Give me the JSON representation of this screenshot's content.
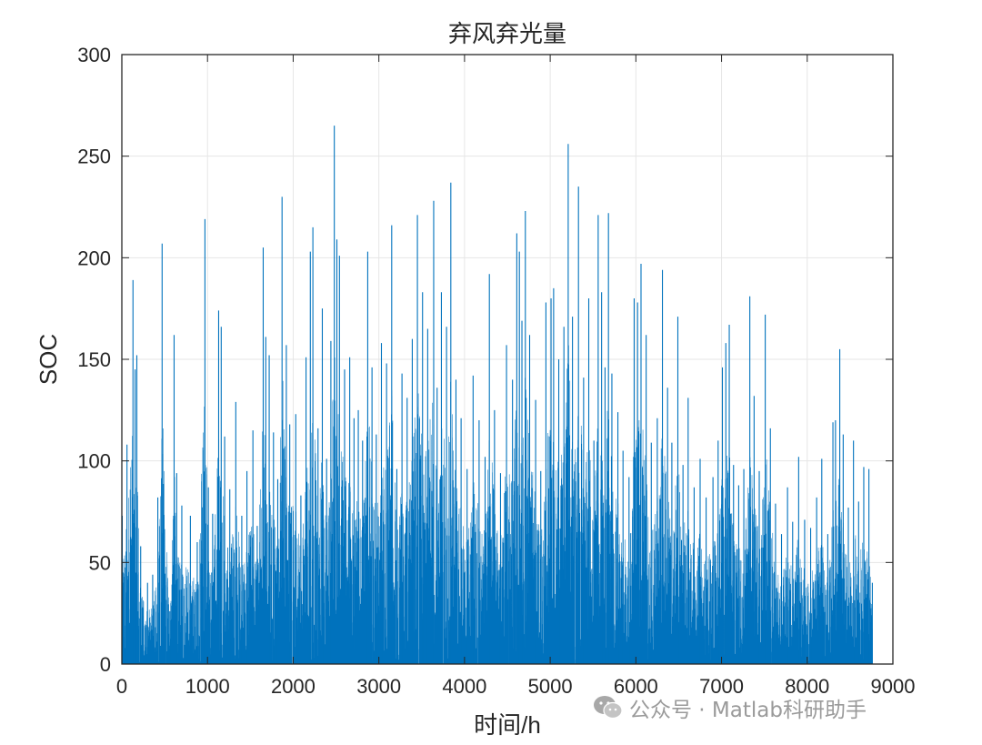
{
  "chart_data": {
    "type": "bar",
    "title": "弃风弃光量",
    "xlabel": "时间/h",
    "ylabel": "SOC",
    "xlim": [
      0,
      9000
    ],
    "ylim": [
      0,
      300
    ],
    "xticks": [
      0,
      1000,
      2000,
      3000,
      4000,
      5000,
      6000,
      7000,
      8000,
      9000
    ],
    "yticks": [
      0,
      50,
      100,
      150,
      200,
      250,
      300
    ],
    "grid": true,
    "color": "#0072BD",
    "hours_count": 8760,
    "peaks": [
      {
        "x": 5,
        "y": 73
      },
      {
        "x": 60,
        "y": 108
      },
      {
        "x": 130,
        "y": 189
      },
      {
        "x": 155,
        "y": 145
      },
      {
        "x": 175,
        "y": 152
      },
      {
        "x": 220,
        "y": 58
      },
      {
        "x": 300,
        "y": 40
      },
      {
        "x": 360,
        "y": 44
      },
      {
        "x": 420,
        "y": 82
      },
      {
        "x": 470,
        "y": 207
      },
      {
        "x": 560,
        "y": 26
      },
      {
        "x": 610,
        "y": 162
      },
      {
        "x": 640,
        "y": 94
      },
      {
        "x": 700,
        "y": 78
      },
      {
        "x": 800,
        "y": 73
      },
      {
        "x": 880,
        "y": 60
      },
      {
        "x": 970,
        "y": 219
      },
      {
        "x": 1010,
        "y": 87
      },
      {
        "x": 1060,
        "y": 74
      },
      {
        "x": 1130,
        "y": 174
      },
      {
        "x": 1160,
        "y": 166
      },
      {
        "x": 1200,
        "y": 112
      },
      {
        "x": 1260,
        "y": 86
      },
      {
        "x": 1330,
        "y": 129
      },
      {
        "x": 1400,
        "y": 73
      },
      {
        "x": 1460,
        "y": 95
      },
      {
        "x": 1530,
        "y": 115
      },
      {
        "x": 1580,
        "y": 68
      },
      {
        "x": 1650,
        "y": 205
      },
      {
        "x": 1680,
        "y": 161
      },
      {
        "x": 1720,
        "y": 152
      },
      {
        "x": 1770,
        "y": 114
      },
      {
        "x": 1820,
        "y": 91
      },
      {
        "x": 1870,
        "y": 230
      },
      {
        "x": 1920,
        "y": 157
      },
      {
        "x": 1960,
        "y": 118
      },
      {
        "x": 2030,
        "y": 123
      },
      {
        "x": 2090,
        "y": 83
      },
      {
        "x": 2150,
        "y": 151
      },
      {
        "x": 2200,
        "y": 203
      },
      {
        "x": 2230,
        "y": 215
      },
      {
        "x": 2290,
        "y": 116
      },
      {
        "x": 2340,
        "y": 175
      },
      {
        "x": 2390,
        "y": 101
      },
      {
        "x": 2440,
        "y": 159
      },
      {
        "x": 2480,
        "y": 265
      },
      {
        "x": 2510,
        "y": 209
      },
      {
        "x": 2540,
        "y": 201
      },
      {
        "x": 2600,
        "y": 145
      },
      {
        "x": 2660,
        "y": 151
      },
      {
        "x": 2710,
        "y": 121
      },
      {
        "x": 2760,
        "y": 125
      },
      {
        "x": 2810,
        "y": 110
      },
      {
        "x": 2870,
        "y": 203
      },
      {
        "x": 2920,
        "y": 146
      },
      {
        "x": 2970,
        "y": 113
      },
      {
        "x": 3030,
        "y": 158
      },
      {
        "x": 3090,
        "y": 148
      },
      {
        "x": 3150,
        "y": 216
      },
      {
        "x": 3210,
        "y": 96
      },
      {
        "x": 3270,
        "y": 143
      },
      {
        "x": 3330,
        "y": 131
      },
      {
        "x": 3390,
        "y": 160
      },
      {
        "x": 3450,
        "y": 221
      },
      {
        "x": 3510,
        "y": 183
      },
      {
        "x": 3570,
        "y": 165
      },
      {
        "x": 3640,
        "y": 228
      },
      {
        "x": 3680,
        "y": 136
      },
      {
        "x": 3730,
        "y": 183
      },
      {
        "x": 3790,
        "y": 166
      },
      {
        "x": 3840,
        "y": 237
      },
      {
        "x": 3900,
        "y": 140
      },
      {
        "x": 3960,
        "y": 121
      },
      {
        "x": 4030,
        "y": 96
      },
      {
        "x": 4100,
        "y": 142
      },
      {
        "x": 4170,
        "y": 120
      },
      {
        "x": 4240,
        "y": 102
      },
      {
        "x": 4290,
        "y": 192
      },
      {
        "x": 4350,
        "y": 125
      },
      {
        "x": 4420,
        "y": 94
      },
      {
        "x": 4490,
        "y": 157
      },
      {
        "x": 4560,
        "y": 140
      },
      {
        "x": 4610,
        "y": 212
      },
      {
        "x": 4640,
        "y": 203
      },
      {
        "x": 4670,
        "y": 169
      },
      {
        "x": 4710,
        "y": 223
      },
      {
        "x": 4760,
        "y": 162
      },
      {
        "x": 4830,
        "y": 130
      },
      {
        "x": 4890,
        "y": 95
      },
      {
        "x": 4950,
        "y": 178
      },
      {
        "x": 5010,
        "y": 180
      },
      {
        "x": 5040,
        "y": 185
      },
      {
        "x": 5100,
        "y": 150
      },
      {
        "x": 5160,
        "y": 166
      },
      {
        "x": 5210,
        "y": 256
      },
      {
        "x": 5260,
        "y": 171
      },
      {
        "x": 5330,
        "y": 235
      },
      {
        "x": 5390,
        "y": 141
      },
      {
        "x": 5450,
        "y": 180
      },
      {
        "x": 5510,
        "y": 110
      },
      {
        "x": 5560,
        "y": 221
      },
      {
        "x": 5600,
        "y": 183
      },
      {
        "x": 5640,
        "y": 146
      },
      {
        "x": 5680,
        "y": 222
      },
      {
        "x": 5720,
        "y": 143
      },
      {
        "x": 5790,
        "y": 124
      },
      {
        "x": 5850,
        "y": 105
      },
      {
        "x": 5920,
        "y": 92
      },
      {
        "x": 5980,
        "y": 180
      },
      {
        "x": 6020,
        "y": 178
      },
      {
        "x": 6060,
        "y": 197
      },
      {
        "x": 6120,
        "y": 162
      },
      {
        "x": 6180,
        "y": 109
      },
      {
        "x": 6250,
        "y": 121
      },
      {
        "x": 6310,
        "y": 194
      },
      {
        "x": 6370,
        "y": 136
      },
      {
        "x": 6420,
        "y": 109
      },
      {
        "x": 6490,
        "y": 171
      },
      {
        "x": 6550,
        "y": 98
      },
      {
        "x": 6610,
        "y": 131
      },
      {
        "x": 6680,
        "y": 87
      },
      {
        "x": 6750,
        "y": 101
      },
      {
        "x": 6820,
        "y": 82
      },
      {
        "x": 6900,
        "y": 92
      },
      {
        "x": 6960,
        "y": 110
      },
      {
        "x": 7010,
        "y": 146
      },
      {
        "x": 7050,
        "y": 158
      },
      {
        "x": 7090,
        "y": 167
      },
      {
        "x": 7140,
        "y": 98
      },
      {
        "x": 7200,
        "y": 88
      },
      {
        "x": 7260,
        "y": 96
      },
      {
        "x": 7330,
        "y": 181
      },
      {
        "x": 7380,
        "y": 132
      },
      {
        "x": 7440,
        "y": 95
      },
      {
        "x": 7510,
        "y": 172
      },
      {
        "x": 7570,
        "y": 116
      },
      {
        "x": 7630,
        "y": 79
      },
      {
        "x": 7700,
        "y": 64
      },
      {
        "x": 7770,
        "y": 87
      },
      {
        "x": 7830,
        "y": 70
      },
      {
        "x": 7900,
        "y": 102
      },
      {
        "x": 7970,
        "y": 71
      },
      {
        "x": 8040,
        "y": 67
      },
      {
        "x": 8110,
        "y": 82
      },
      {
        "x": 8170,
        "y": 101
      },
      {
        "x": 8240,
        "y": 64
      },
      {
        "x": 8300,
        "y": 119
      },
      {
        "x": 8330,
        "y": 120
      },
      {
        "x": 8380,
        "y": 155
      },
      {
        "x": 8420,
        "y": 113
      },
      {
        "x": 8480,
        "y": 77
      },
      {
        "x": 8540,
        "y": 110
      },
      {
        "x": 8600,
        "y": 80
      },
      {
        "x": 8660,
        "y": 97
      },
      {
        "x": 8720,
        "y": 96
      },
      {
        "x": 8760,
        "y": 40
      }
    ]
  },
  "watermark": {
    "icon": "wechat-icon",
    "text": "公众号 · Matlab科研助手"
  }
}
